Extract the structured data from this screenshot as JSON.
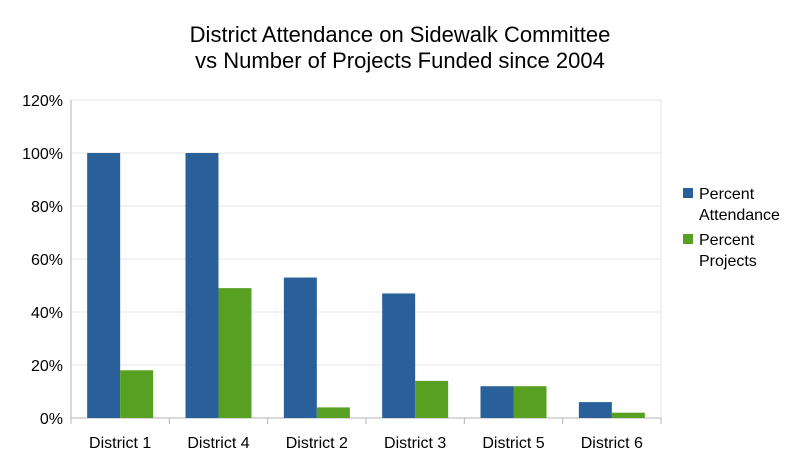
{
  "chart_data": {
    "type": "bar",
    "title_lines": [
      "District Attendance on Sidewalk Committee",
      "vs Number of Projects Funded since 2004"
    ],
    "categories": [
      "District 1",
      "District 4",
      "District 2",
      "District 3",
      "District 5",
      "District 6"
    ],
    "series": [
      {
        "name_lines": [
          "Percent",
          "Attendance"
        ],
        "color": "#2a6099",
        "values": [
          1.0,
          1.0,
          0.53,
          0.47,
          0.12,
          0.06
        ]
      },
      {
        "name_lines": [
          "Percent",
          "Projects"
        ],
        "color": "#57a021",
        "values": [
          0.18,
          0.49,
          0.04,
          0.14,
          0.12,
          0.02
        ]
      }
    ],
    "ylim": [
      0,
      1.2
    ],
    "yticks": [
      "0%",
      "20%",
      "40%",
      "60%",
      "80%",
      "100%",
      "120%"
    ],
    "grid": true,
    "legend_position": "right"
  }
}
